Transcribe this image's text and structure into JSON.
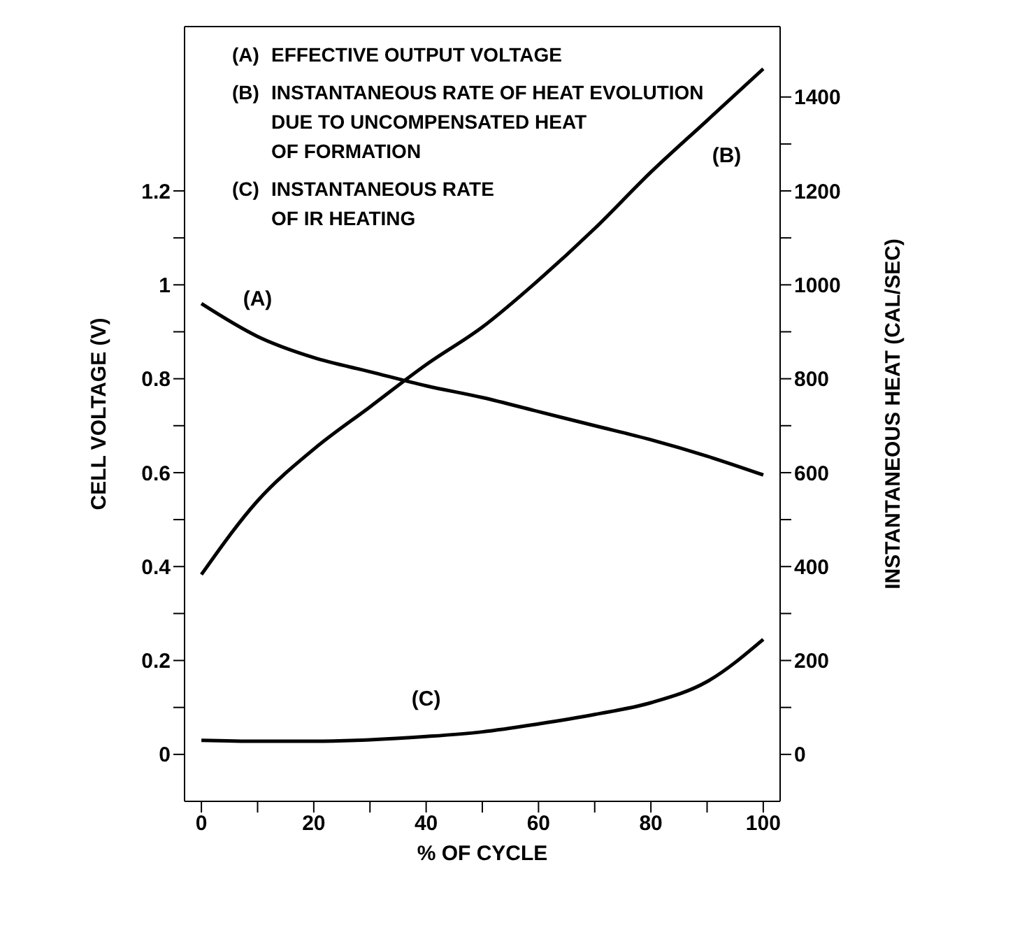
{
  "chart_data": {
    "type": "line",
    "xlabel": "% OF CYCLE",
    "ylabel": "CELL VOLTAGE (V)",
    "y2label": "INSTANTANEOUS HEAT (CAL/SEC)",
    "x": [
      0,
      10,
      20,
      30,
      40,
      50,
      60,
      70,
      80,
      90,
      100
    ],
    "series": [
      {
        "name": "(A)",
        "color": "#000000",
        "values": [
          0.96,
          0.89,
          0.845,
          0.815,
          0.785,
          0.76,
          0.73,
          0.7,
          0.67,
          0.635,
          0.595
        ]
      },
      {
        "name": "(B)",
        "color": "#000000",
        "axis": "y2",
        "values": [
          383,
          540,
          650,
          740,
          830,
          910,
          1010,
          1120,
          1240,
          1350,
          1460
        ]
      },
      {
        "name": "(C)",
        "color": "#000000",
        "axis": "y2",
        "values": [
          30,
          28,
          28,
          31,
          38,
          48,
          65,
          85,
          110,
          155,
          245
        ]
      }
    ],
    "xlim": [
      -3,
      103
    ],
    "xticks": [
      0,
      {
        "value": 10,
        "label": null
      },
      20,
      {
        "value": 30,
        "label": null
      },
      40,
      {
        "value": 50,
        "label": null
      },
      60,
      {
        "value": 70,
        "label": null
      },
      80,
      {
        "value": 90,
        "label": null
      },
      100
    ],
    "ylim": [
      -0.1,
      1.55
    ],
    "yticks": [
      0,
      {
        "value": 0.1,
        "label": null
      },
      0.2,
      {
        "value": 0.3,
        "label": null
      },
      0.4,
      {
        "value": 0.5,
        "label": null
      },
      0.6,
      {
        "value": 0.7,
        "label": null
      },
      0.8,
      {
        "value": 0.9,
        "label": null
      },
      1.0,
      {
        "value": 1.1,
        "label": null
      },
      1.2
    ],
    "y2lim": [
      -100,
      1550
    ],
    "y2ticks": [
      0,
      {
        "value": 100,
        "label": null
      },
      200,
      {
        "value": 300,
        "label": null
      },
      400,
      {
        "value": 500,
        "label": null
      },
      600,
      {
        "value": 700,
        "label": null
      },
      800,
      {
        "value": 900,
        "label": null
      },
      1000,
      {
        "value": 1100,
        "label": null
      },
      1200,
      {
        "value": 1300,
        "label": null
      },
      1400
    ],
    "annotations": [
      "(A) EFFECTIVE OUTPUT VOLTAGE",
      "(B) INSTANTANEOUS RATE OF HEAT EVOLUTION\nDUE TO UNCOMPENSATED HEAT\nOF FORMATION",
      "(C) INSTANTANEOUS RATE\nOF IR HEATING"
    ],
    "grid": false,
    "legend": false,
    "marker": "none",
    "line_style": "solid"
  }
}
